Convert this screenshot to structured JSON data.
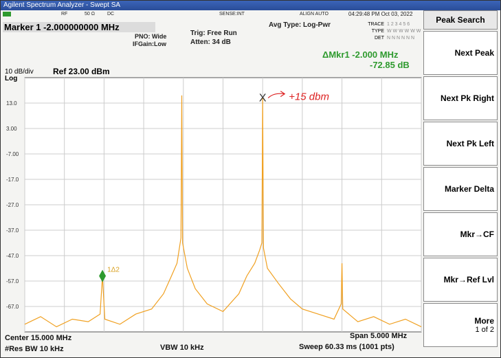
{
  "window_title": "Agilent Spectrum Analyzer - Swept SA",
  "status": {
    "rf": "RF",
    "impedance": "50 Ω",
    "coupling": "DC",
    "sense": "SENSE:INT",
    "align": "ALIGN AUTO",
    "datetime": "04:29:48 PM Oct 03, 2022"
  },
  "marker_readout": "Marker 1 -2.000000000 MHz",
  "settings": {
    "pno": "PNO: Wide",
    "ifgain": "IFGain:Low",
    "trig": "Trig: Free Run",
    "atten": "Atten: 34 dB",
    "avg": "Avg Type: Log-Pwr"
  },
  "trace_info": {
    "labels": [
      "TRACE",
      "TYPE",
      "DET"
    ],
    "values": [
      "1 2 3 4 5 6",
      "W W W W W W",
      "N N N N N N"
    ]
  },
  "delta_readout": [
    "ΔMkr1 -2.000 MHz",
    "-72.85 dB"
  ],
  "scale": "10 dB/div",
  "log": "Log",
  "ref": "Ref 23.00 dBm",
  "annotation": "+15 dbm",
  "plot": {
    "xlim": [
      12.5,
      17.5
    ],
    "ylim": [
      -77,
      23
    ],
    "yticks": [
      {
        "value": 13,
        "label": "13.0"
      },
      {
        "value": 3,
        "label": "3.00"
      },
      {
        "value": -7,
        "label": "-7.00"
      },
      {
        "value": -17,
        "label": "-17.0"
      },
      {
        "value": -27,
        "label": "-27.0"
      },
      {
        "value": -37,
        "label": "-37.0"
      },
      {
        "value": -47,
        "label": "-47.0"
      },
      {
        "value": -57,
        "label": "-57.0"
      },
      {
        "value": -67,
        "label": "-67.0"
      }
    ],
    "xticks": [
      12.5,
      13,
      13.5,
      14,
      14.5,
      15,
      15.5,
      16,
      16.5,
      17,
      17.5
    ],
    "trace": {
      "x": [
        12.5,
        12.7,
        12.9,
        13.1,
        13.3,
        13.45,
        13.48,
        13.51,
        13.7,
        13.9,
        14.1,
        14.25,
        14.35,
        14.42,
        14.47,
        14.48,
        14.49,
        14.55,
        14.65,
        14.8,
        15.0,
        15.2,
        15.3,
        15.4,
        15.46,
        15.49,
        15.5,
        15.51,
        15.56,
        15.7,
        15.85,
        16.0,
        16.2,
        16.4,
        16.49,
        16.5,
        16.51,
        16.7,
        16.9,
        17.1,
        17.3,
        17.5
      ],
      "y": [
        -74,
        -71,
        -75,
        -72,
        -73,
        -70,
        -55,
        -72,
        -74,
        -70,
        -68,
        -62,
        -55,
        -50,
        -40,
        16,
        -42,
        -52,
        -60,
        -66,
        -69,
        -62,
        -55,
        -50,
        -45,
        -42,
        15,
        -44,
        -52,
        -58,
        -64,
        -68,
        -70,
        -72,
        -66,
        -50,
        -68,
        -73,
        -71,
        -74,
        -72,
        -75
      ]
    },
    "markers": [
      {
        "label": "1Δ2",
        "x": 13.48,
        "y": -55
      },
      {
        "label": "X",
        "x": 15.5,
        "y": 15
      }
    ]
  },
  "footer": {
    "center": "Center 15.000 MHz",
    "res_bw": "#Res BW 10 kHz",
    "vbw": "VBW 10 kHz",
    "span": "Span 5.000 MHz",
    "sweep": "Sweep  60.33 ms (1001 pts)"
  },
  "menu": {
    "title": "Peak Search",
    "items": [
      "Next Peak",
      "Next Pk Right",
      "Next Pk Left",
      "Marker Delta",
      "Mkr→CF",
      "Mkr→Ref Lvl"
    ],
    "more": "More",
    "more_page": "1 of 2"
  }
}
